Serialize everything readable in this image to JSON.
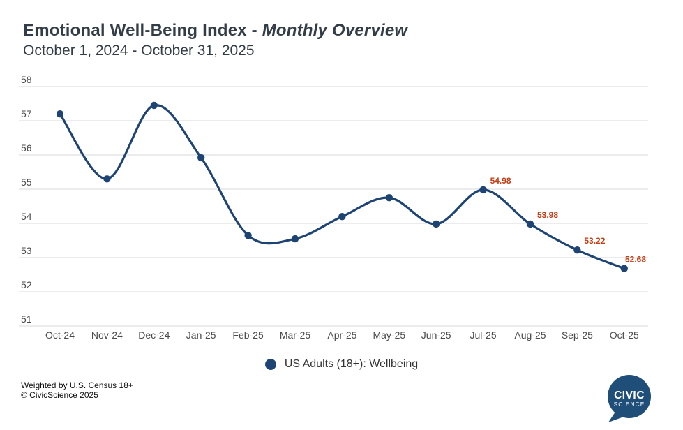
{
  "header": {
    "title_main": "Emotional Well-Being Index - ",
    "title_italic": "Monthly Overview",
    "subtitle": "October 1, 2024 - October 31, 2025"
  },
  "legend": {
    "series_label": "US Adults (18+): Wellbeing"
  },
  "footer": {
    "weighting_note": "Weighted by U.S. Census 18+",
    "copyright": "© CivicScience 2025"
  },
  "logo": {
    "line1": "CIVIC",
    "line2": "SCIENCE"
  },
  "colors": {
    "accent_navy": "#1e4473",
    "data_label_red": "#c63c13",
    "title_text": "#333d47",
    "axis_text": "#4a4a4a",
    "gridline": "#d9d9d9",
    "logo_blue": "#1f4e79"
  },
  "chart_data": {
    "type": "line",
    "line_style": "spline",
    "title": "Emotional Well-Being Index - Monthly Overview",
    "subtitle": "October 1, 2024 - October 31, 2025",
    "categories": [
      "Oct-24",
      "Nov-24",
      "Dec-24",
      "Jan-25",
      "Feb-25",
      "Mar-25",
      "Apr-25",
      "May-25",
      "Jun-25",
      "Jul-25",
      "Aug-25",
      "Sep-25",
      "Oct-25"
    ],
    "series": [
      {
        "name": "US Adults (18+): Wellbeing",
        "values": [
          57.2,
          55.3,
          57.45,
          55.92,
          53.65,
          53.55,
          54.2,
          54.75,
          53.98,
          54.98,
          53.98,
          53.22,
          52.68
        ],
        "point_labels": [
          "",
          "",
          "",
          "",
          "",
          "",
          "",
          "",
          "",
          "54.98",
          "53.98",
          "53.22",
          "52.68"
        ]
      }
    ],
    "xlabel": "",
    "ylabel": "",
    "ylim": [
      51,
      58
    ],
    "yticks": [
      51,
      52,
      53,
      54,
      55,
      56,
      57,
      58
    ],
    "grid": true,
    "marker": "circle",
    "legend_position": "bottom-center"
  }
}
